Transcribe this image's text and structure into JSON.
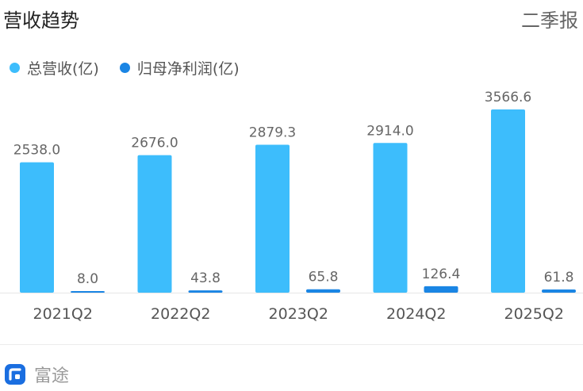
{
  "header": {
    "title": "营收趋势",
    "period": "二季报"
  },
  "legend": [
    {
      "label": "总营收(亿)",
      "color": "#3dbdfc"
    },
    {
      "label": "归母净利润(亿)",
      "color": "#1a85e4"
    }
  ],
  "footer": {
    "brand": "富途"
  },
  "chart_data": {
    "type": "bar",
    "categories": [
      "2021Q2",
      "2022Q2",
      "2023Q2",
      "2024Q2",
      "2025Q2"
    ],
    "series": [
      {
        "name": "总营收(亿)",
        "color": "#3dbdfc",
        "values": [
          2538.0,
          2676.0,
          2879.3,
          2914.0,
          3566.6
        ]
      },
      {
        "name": "归母净利润(亿)",
        "color": "#1a85e4",
        "values": [
          8.0,
          43.8,
          65.8,
          126.4,
          61.8
        ]
      }
    ],
    "ylim": [
      0,
      3566.6
    ],
    "grid": false
  }
}
